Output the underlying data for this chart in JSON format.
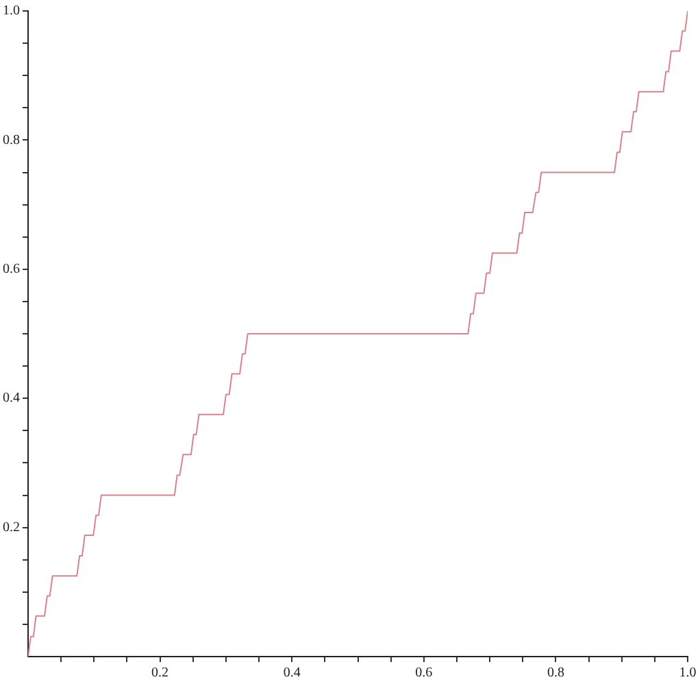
{
  "chart_data": {
    "type": "line",
    "color": "#d9848c",
    "x": [
      0,
      0.004,
      0.008,
      0.012,
      0.025,
      0.029,
      0.033,
      0.037,
      0.074,
      0.078,
      0.082,
      0.086,
      0.099,
      0.103,
      0.107,
      0.111,
      0.222,
      0.226,
      0.23,
      0.235,
      0.247,
      0.251,
      0.255,
      0.259,
      0.296,
      0.3,
      0.305,
      0.309,
      0.321,
      0.325,
      0.329,
      0.333,
      0.667,
      0.671,
      0.675,
      0.679,
      0.691,
      0.695,
      0.7,
      0.704,
      0.741,
      0.745,
      0.749,
      0.753,
      0.765,
      0.77,
      0.774,
      0.778,
      0.889,
      0.893,
      0.897,
      0.901,
      0.914,
      0.918,
      0.922,
      0.926,
      0.963,
      0.967,
      0.971,
      0.975,
      0.988,
      0.992,
      0.996,
      1
    ],
    "values": [
      0,
      0.031,
      0.031,
      0.063,
      0.063,
      0.094,
      0.094,
      0.125,
      0.125,
      0.156,
      0.156,
      0.188,
      0.188,
      0.219,
      0.219,
      0.25,
      0.25,
      0.281,
      0.281,
      0.313,
      0.313,
      0.344,
      0.344,
      0.375,
      0.375,
      0.406,
      0.406,
      0.438,
      0.438,
      0.469,
      0.469,
      0.5,
      0.5,
      0.531,
      0.531,
      0.563,
      0.563,
      0.594,
      0.594,
      0.625,
      0.625,
      0.656,
      0.656,
      0.688,
      0.688,
      0.719,
      0.719,
      0.75,
      0.75,
      0.781,
      0.781,
      0.813,
      0.813,
      0.844,
      0.844,
      0.875,
      0.875,
      0.906,
      0.906,
      0.938,
      0.938,
      0.969,
      0.969,
      1
    ],
    "xlim": [
      0,
      1
    ],
    "ylim": [
      0,
      1
    ],
    "xticks": [
      {
        "value": 0.05,
        "label": null
      },
      {
        "value": 0.1,
        "label": null
      },
      {
        "value": 0.15,
        "label": null
      },
      0.2,
      {
        "value": 0.25,
        "label": null
      },
      {
        "value": 0.3,
        "label": null
      },
      {
        "value": 0.35,
        "label": null
      },
      0.4,
      {
        "value": 0.45,
        "label": null
      },
      {
        "value": 0.5,
        "label": null
      },
      {
        "value": 0.55,
        "label": null
      },
      0.6,
      {
        "value": 0.65,
        "label": null
      },
      {
        "value": 0.7,
        "label": null
      },
      {
        "value": 0.75,
        "label": null
      },
      0.8,
      {
        "value": 0.85,
        "label": null
      },
      {
        "value": 0.9,
        "label": null
      },
      {
        "value": 0.95,
        "label": null
      },
      {
        "value": 1,
        "label": "1.0"
      }
    ],
    "yticks": [
      {
        "value": 0.05,
        "label": null
      },
      {
        "value": 0.1,
        "label": null
      },
      {
        "value": 0.15,
        "label": null
      },
      0.2,
      {
        "value": 0.25,
        "label": null
      },
      {
        "value": 0.3,
        "label": null
      },
      {
        "value": 0.35,
        "label": null
      },
      0.4,
      {
        "value": 0.45,
        "label": null
      },
      {
        "value": 0.5,
        "label": null
      },
      {
        "value": 0.55,
        "label": null
      },
      0.6,
      {
        "value": 0.65,
        "label": null
      },
      {
        "value": 0.7,
        "label": null
      },
      {
        "value": 0.75,
        "label": null
      },
      0.8,
      {
        "value": 0.85,
        "label": null
      },
      {
        "value": 0.9,
        "label": null
      },
      {
        "value": 0.95,
        "label": null
      },
      {
        "value": 1,
        "label": "1.0"
      }
    ]
  }
}
